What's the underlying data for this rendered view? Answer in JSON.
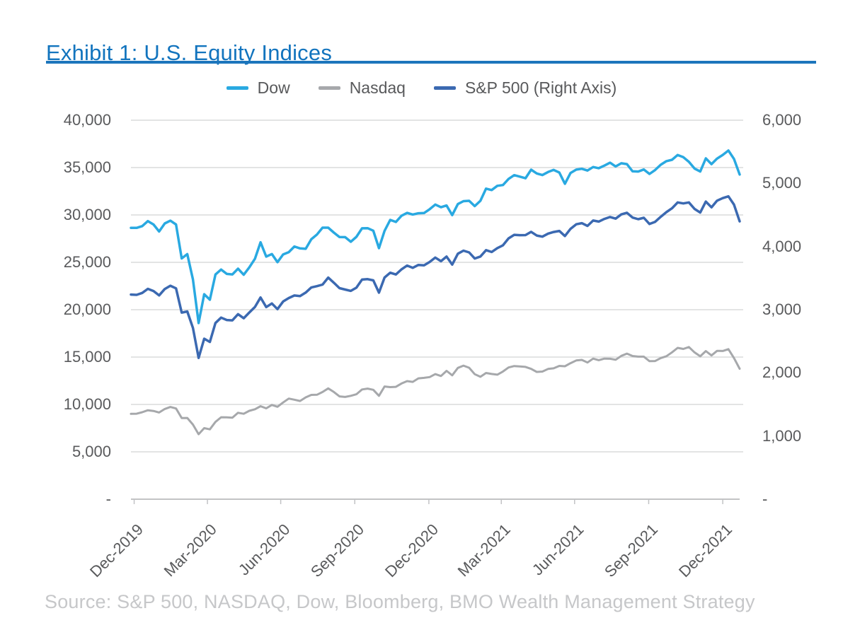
{
  "header": {
    "title": "Exhibit 1: U.S. Equity Indices"
  },
  "footer": {
    "source": "Source: S&P 500, NASDAQ, Dow, Bloomberg, BMO Wealth Management Strategy"
  },
  "colors": {
    "title_text": "#1274be",
    "title_rule": "#1c75bc",
    "axis_text": "#595a5c",
    "grid_line": "#dadbdc",
    "axis_line": "#c2c3c5",
    "source_text": "#c6c7c9",
    "dow": "#29a9e1",
    "nasdaq": "#a6a8ab",
    "sp500": "#3b69b1"
  },
  "chart_data": {
    "type": "line",
    "title": "Exhibit 1: U.S. Equity Indices",
    "xlabel": "",
    "ylabel_left": "",
    "ylabel_right": "",
    "grid": "horizontal",
    "legend_position": "top-center",
    "x_unit": "weekly closes, Dec-2019 through Jan-2022",
    "x_tick_labels": [
      "Dec-2019",
      "Mar-2020",
      "Jun-2020",
      "Sep-2020",
      "Dec-2020",
      "Mar-2021",
      "Jun-2021",
      "Sep-2021",
      "Dec-2021"
    ],
    "x_tick_positions_days": [
      4,
      95,
      186,
      278,
      370,
      460,
      551,
      643,
      735
    ],
    "x_total_days": 756,
    "left_axis": {
      "min": 0,
      "max": 40000,
      "ticks_top_to_bottom": [
        "40,000",
        "35,000",
        "30,000",
        "25,000",
        "20,000",
        "15,000",
        "10,000",
        "5,000",
        "-"
      ]
    },
    "right_axis": {
      "min": 0,
      "max": 6000,
      "ticks_top_to_bottom": [
        "6,000",
        "5,000",
        "4,000",
        "3,000",
        "2,000",
        "1,000",
        "-"
      ]
    },
    "series": [
      {
        "id": "dow",
        "name": "Dow",
        "axis": "left",
        "color": "#29a9e1",
        "values": [
          28645,
          28635,
          28824,
          29348,
          28990,
          28256,
          29103,
          29398,
          28992,
          25409,
          25865,
          23186,
          18592,
          21637,
          21053,
          23719,
          24242,
          23775,
          23724,
          24331,
          23685,
          24465,
          25383,
          27111,
          25606,
          25871,
          25016,
          25827,
          26075,
          26672,
          26470,
          26428,
          27433,
          27931,
          28654,
          28653,
          28133,
          27666,
          27657,
          27174,
          27683,
          28587,
          28606,
          28336,
          26502,
          28323,
          29480,
          29263,
          29910,
          30218,
          30046,
          30179,
          30200,
          30606,
          31098,
          30814,
          30997,
          29983,
          31148,
          31458,
          31494,
          30932,
          31496,
          32779,
          32628,
          33073,
          33153,
          33801,
          34201,
          34043,
          33875,
          34778,
          34382,
          34208,
          34529,
          34756,
          34480,
          33290,
          34434,
          34786,
          34870,
          34688,
          35062,
          34935,
          35209,
          35515,
          35120,
          35456,
          35369,
          34608,
          34585,
          34798,
          34326,
          34746,
          35295,
          35677,
          35820,
          36328,
          36100,
          35602,
          34899,
          34580,
          35971,
          35365,
          35950,
          36338,
          36800,
          35912,
          34265
        ]
      },
      {
        "id": "nasdaq",
        "name": "Nasdaq",
        "axis": "left",
        "color": "#a6a8ab",
        "values": [
          9007,
          9021,
          9179,
          9389,
          9315,
          9151,
          9521,
          9731,
          9577,
          8567,
          8576,
          7875,
          6861,
          7502,
          7373,
          8154,
          8650,
          8635,
          8605,
          9121,
          9014,
          9325,
          9490,
          9814,
          9589,
          9946,
          9757,
          10208,
          10617,
          10503,
          10363,
          10745,
          11011,
          11019,
          11312,
          11696,
          11313,
          10854,
          10793,
          10914,
          11075,
          11580,
          11672,
          11548,
          10912,
          11895,
          11829,
          11855,
          12206,
          12464,
          12378,
          12756,
          12805,
          12888,
          13202,
          12998,
          13543,
          13071,
          13856,
          14095,
          13874,
          13192,
          12920,
          13320,
          13215,
          13139,
          13480,
          13900,
          14052,
          14017,
          13963,
          13752,
          13430,
          13471,
          13749,
          13814,
          14069,
          14030,
          14360,
          14639,
          14702,
          14427,
          14837,
          14673,
          14836,
          14823,
          14715,
          15130,
          15364,
          15115,
          15044,
          15048,
          14567,
          14580,
          14897,
          15090,
          15498,
          15972,
          15861,
          16057,
          15492,
          15085,
          15631,
          15170,
          15654,
          15645,
          15833,
          14894,
          13769
        ]
      },
      {
        "id": "sp500",
        "name": "S&P 500 (Right Axis)",
        "axis": "right",
        "color": "#3b69b1",
        "values": [
          3240,
          3235,
          3265,
          3330,
          3295,
          3226,
          3328,
          3380,
          3338,
          2954,
          2972,
          2711,
          2237,
          2541,
          2489,
          2790,
          2875,
          2837,
          2831,
          2930,
          2864,
          2955,
          3044,
          3194,
          3041,
          3098,
          3009,
          3130,
          3185,
          3225,
          3216,
          3271,
          3351,
          3373,
          3397,
          3508,
          3427,
          3341,
          3319,
          3298,
          3348,
          3477,
          3484,
          3465,
          3270,
          3509,
          3585,
          3558,
          3638,
          3699,
          3663,
          3709,
          3703,
          3756,
          3825,
          3768,
          3841,
          3714,
          3887,
          3935,
          3907,
          3811,
          3842,
          3943,
          3913,
          3975,
          4020,
          4129,
          4185,
          4180,
          4181,
          4233,
          4174,
          4156,
          4204,
          4230,
          4247,
          4166,
          4281,
          4352,
          4370,
          4327,
          4412,
          4395,
          4437,
          4468,
          4442,
          4509,
          4535,
          4459,
          4433,
          4455,
          4357,
          4391,
          4471,
          4545,
          4605,
          4698,
          4683,
          4698,
          4595,
          4538,
          4712,
          4621,
          4726,
          4766,
          4794,
          4663,
          4398
        ]
      }
    ]
  }
}
